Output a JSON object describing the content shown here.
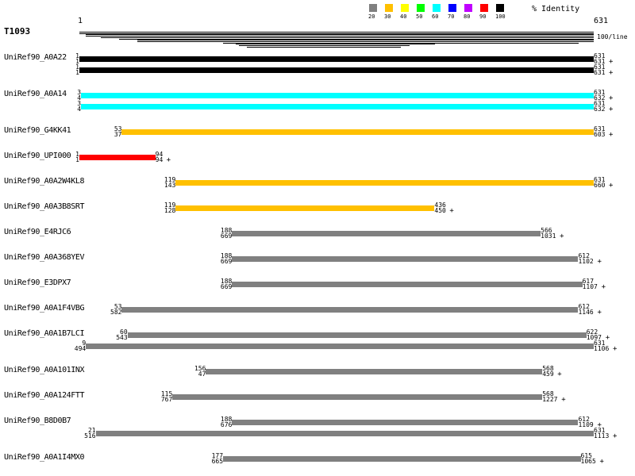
{
  "query": {
    "name": "T1093",
    "start": "1",
    "end": "631",
    "scale_label": "100/line",
    "length": 631
  },
  "coverage_lines": [
    [
      1,
      631
    ],
    [
      1,
      631
    ],
    [
      9,
      631
    ],
    [
      9,
      631
    ],
    [
      27,
      631
    ],
    [
      50,
      631
    ],
    [
      72,
      631
    ],
    [
      72,
      631
    ],
    [
      177,
      613
    ],
    [
      193,
      437
    ],
    [
      196,
      405
    ],
    [
      206,
      395
    ]
  ],
  "legend": {
    "title": "% Identity",
    "items": [
      {
        "label": "20",
        "color": "#808080"
      },
      {
        "label": "30",
        "color": "#FFC000"
      },
      {
        "label": "40",
        "color": "#FFFF00"
      },
      {
        "label": "50",
        "color": "#00FF00"
      },
      {
        "label": "60",
        "color": "#00FFFF"
      },
      {
        "label": "70",
        "color": "#0000FF"
      },
      {
        "label": "80",
        "color": "#C000FF"
      },
      {
        "label": "90",
        "color": "#FF0000"
      },
      {
        "label": "100",
        "color": "#000000"
      }
    ]
  },
  "hits": [
    {
      "name": "UniRef90_A0A22",
      "color": "#000000",
      "hsps": [
        {
          "qs": 1,
          "qe": 631,
          "ss": 1,
          "se": 631
        },
        {
          "qs": 1,
          "qe": 631,
          "ss": 1,
          "se": 631
        }
      ]
    },
    {
      "name": "UniRef90_A0A14",
      "color": "#00FFFF",
      "hsps": [
        {
          "qs": 3,
          "qe": 631,
          "ss": 4,
          "se": 632
        },
        {
          "qs": 3,
          "qe": 631,
          "ss": 4,
          "se": 632
        }
      ]
    },
    {
      "name": "UniRef90_G4KK41",
      "color": "#FFC000",
      "hsps": [
        {
          "qs": 53,
          "qe": 631,
          "ss": 37,
          "se": 603
        }
      ]
    },
    {
      "name": "UniRef90_UPI000",
      "color": "#FF0000",
      "hsps": [
        {
          "qs": 1,
          "qe": 94,
          "ss": 1,
          "se": 94
        }
      ]
    },
    {
      "name": "UniRef90_A0A2W4KL8",
      "color": "#FFC000",
      "hsps": [
        {
          "qs": 119,
          "qe": 631,
          "ss": 143,
          "se": 660
        }
      ]
    },
    {
      "name": "UniRef90_A0A3B8SRT",
      "color": "#FFC000",
      "hsps": [
        {
          "qs": 119,
          "qe": 436,
          "ss": 128,
          "se": 450
        }
      ]
    },
    {
      "name": "UniRef90_E4RJC6",
      "color": "#808080",
      "hsps": [
        {
          "qs": 188,
          "qe": 566,
          "ss": 669,
          "se": 1031
        }
      ]
    },
    {
      "name": "UniRef90_A0A368YEV",
      "color": "#808080",
      "hsps": [
        {
          "qs": 188,
          "qe": 612,
          "ss": 669,
          "se": 1102
        }
      ]
    },
    {
      "name": "UniRef90_E3DPX7",
      "color": "#808080",
      "hsps": [
        {
          "qs": 188,
          "qe": 617,
          "ss": 669,
          "se": 1107
        }
      ]
    },
    {
      "name": "UniRef90_A0A1F4VBG",
      "color": "#808080",
      "hsps": [
        {
          "qs": 53,
          "qe": 612,
          "ss": 582,
          "se": 1146
        }
      ]
    },
    {
      "name": "UniRef90_A0A1B7LCI",
      "color": "#808080",
      "hsps": [
        {
          "qs": 60,
          "qe": 622,
          "ss": 543,
          "se": 1097
        },
        {
          "qs": 9,
          "qe": 631,
          "ss": 494,
          "se": 1106
        }
      ]
    },
    {
      "name": "UniRef90_A0A101INX",
      "color": "#808080",
      "hsps": [
        {
          "qs": 156,
          "qe": 568,
          "ss": 47,
          "se": 459
        }
      ]
    },
    {
      "name": "UniRef90_A0A124FTT",
      "color": "#808080",
      "hsps": [
        {
          "qs": 115,
          "qe": 568,
          "ss": 767,
          "se": 1227
        }
      ]
    },
    {
      "name": "UniRef90_B8D0B7",
      "color": "#808080",
      "hsps": [
        {
          "qs": 188,
          "qe": 612,
          "ss": 676,
          "se": 1109
        },
        {
          "qs": 21,
          "qe": 631,
          "ss": 516,
          "se": 1113
        }
      ]
    },
    {
      "name": "UniRef90_A0A1I4MX0",
      "color": "#808080",
      "hsps": [
        {
          "qs": 177,
          "qe": 615,
          "ss": 665,
          "se": 1065
        }
      ]
    }
  ],
  "strand_mark": "+"
}
